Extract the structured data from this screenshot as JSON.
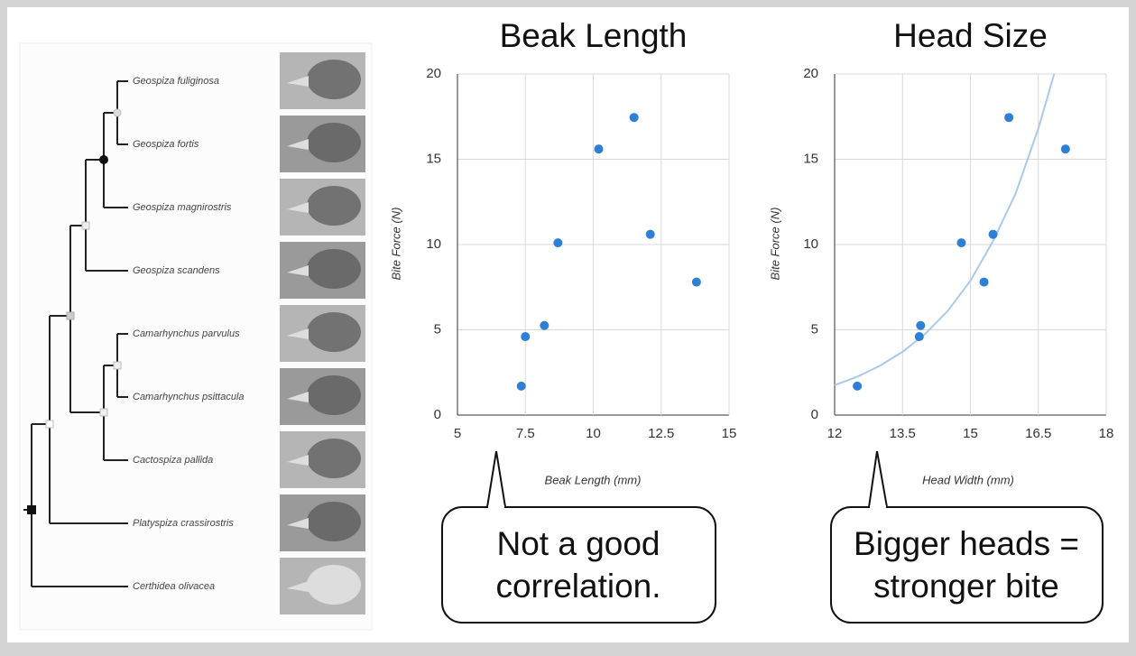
{
  "tree": {
    "species": [
      "Geospiza fuliginosa",
      "Geospiza fortis",
      "Geospiza magnirostris",
      "Geospiza scandens",
      "Camarhynchus parvulus",
      "Camarhynchus psittacula",
      "Cactospiza pallida",
      "Platyspiza crassirostris",
      "Certhidea olivacea"
    ]
  },
  "callouts": [
    {
      "lines": [
        "Not a good",
        "correlation."
      ]
    },
    {
      "lines": [
        "Bigger heads =",
        "stronger bite"
      ]
    }
  ],
  "chart_data": [
    {
      "type": "scatter",
      "title": "Beak Length",
      "x_label": "Beak Length (mm)",
      "y_label": "Bite Force (N)",
      "x": [
        7.35,
        7.5,
        8.2,
        8.7,
        10.2,
        11.5,
        12.1,
        13.8
      ],
      "values": [
        1.7,
        4.6,
        5.25,
        10.1,
        15.6,
        17.45,
        10.6,
        7.8
      ],
      "color": "#2e7fd6",
      "xlim": [
        5,
        15
      ],
      "ylim": [
        0,
        20
      ],
      "xticks": [
        5,
        7.5,
        10,
        12.5,
        15
      ],
      "yticks": [
        0,
        5,
        10,
        15,
        20
      ],
      "grid": true
    },
    {
      "type": "scatter",
      "title": "Head Size",
      "x_label": "Head Width (mm)",
      "y_label": "Bite Force (N)",
      "x": [
        12.5,
        13.87,
        13.9,
        14.8,
        15.3,
        15.5,
        15.85,
        17.1
      ],
      "values": [
        1.7,
        4.6,
        5.25,
        10.1,
        7.8,
        10.6,
        17.45,
        15.6
      ],
      "color": "#2e7fd6",
      "xlim": [
        12,
        18
      ],
      "ylim": [
        0,
        20
      ],
      "xticks": [
        12,
        13.5,
        15,
        16.5,
        18
      ],
      "yticks": [
        0,
        5,
        10,
        15,
        20
      ],
      "grid": true,
      "trendline": {
        "x": [
          12,
          12.5,
          13,
          13.5,
          14,
          14.5,
          15,
          15.5,
          16,
          16.5,
          16.85
        ],
        "values": [
          1.75,
          2.25,
          2.89,
          3.71,
          4.76,
          6.11,
          7.88,
          10.2,
          13.0,
          16.8,
          20
        ],
        "color": "#a9c8ec"
      }
    }
  ]
}
